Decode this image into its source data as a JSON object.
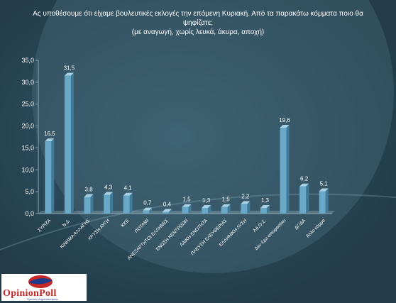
{
  "title_lines": [
    "Ας υποθέσουμε ότι είχαμε βουλευτικές εκλογές την επόμενη Κυριακή. Από τα παρακάτω κόμματα ποιο θα",
    "ψηφίζατε;",
    "(με αναγωγή, χωρίς λευκά, άκυρα, αποχή)"
  ],
  "logo": {
    "name": "OpinionPoll",
    "tagline": "Έρευνες Δημοσκοπήσεις"
  },
  "colors": {
    "background": "#2c4a59",
    "bar": "#6aa8c8",
    "text": "#ffffff"
  },
  "chart_data": {
    "type": "bar",
    "categories": [
      "ΣΥΡΙΖΑ",
      "Ν.Δ.",
      "ΚΙΝΗΜΑ ΑΛΛΑΓΗΣ",
      "ΧΡΥΣΗ ΑΥΓΗ",
      "ΚΚΕ",
      "ΠΟΤΑΜΙ",
      "ΑΝΕΞΑΡΤΗΤΟΙ ΕΛΛΗΝΕΣ",
      "ΕΝΩΣΗ ΚΕΝΤΡΩΩΝ",
      "ΛΑΙΚΗ ΕΝΟΤΗΤΑ",
      "ΠΛΕΥΣΗ ΕΛΕΥΘΕΡΙΑΣ",
      "ΕΛΛΗΝΙΚΗ ΛΥΣΗ",
      "ΛΑ.Ο.Σ.",
      "Δεν έχω αποφασίσει",
      "ΔΓ/ΔΑ",
      "Άλλο κόμμα"
    ],
    "values": [
      16.5,
      31.5,
      3.8,
      4.3,
      4.1,
      0.7,
      0.4,
      1.5,
      1.3,
      1.5,
      2.2,
      1.3,
      19.6,
      6.2,
      5.1
    ],
    "value_labels": [
      "16,5",
      "31,5",
      "3,8",
      "4,3",
      "4,1",
      "0,7",
      "0,4",
      "1,5",
      "1,3",
      "1,5",
      "2,2",
      "1,3",
      "19,6",
      "6,2",
      "5,1"
    ],
    "yticks": [
      0,
      5,
      10,
      15,
      20,
      25,
      30,
      35
    ],
    "ytick_labels": [
      "0,0",
      "5,0",
      "10,0",
      "15,0",
      "20,0",
      "25,0",
      "30,0",
      "35,0"
    ],
    "ylim": [
      0,
      35
    ],
    "grid": false,
    "legend": "none"
  }
}
